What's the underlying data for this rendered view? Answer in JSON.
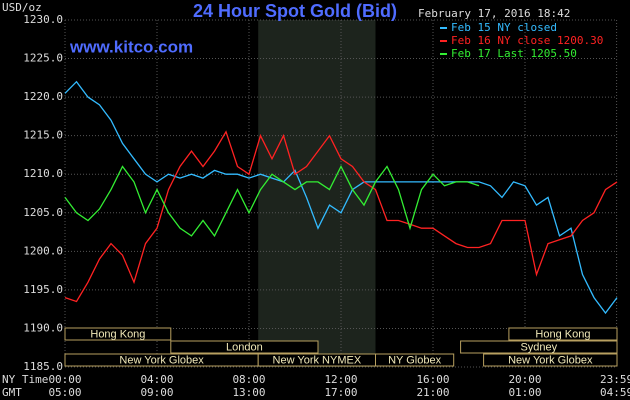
{
  "chart_data": {
    "type": "line",
    "title": "24 Hour Spot Gold (Bid)",
    "unit_label": "USD/oz",
    "timestamp": "February 17, 2016 18:42",
    "watermark": "www.kitco.com",
    "x_row_labels": [
      "NY Time",
      "GMT"
    ],
    "x": [
      0,
      0.5,
      1,
      1.5,
      2,
      2.5,
      3,
      3.5,
      4,
      4.5,
      5,
      5.5,
      6,
      6.5,
      7,
      7.5,
      8,
      8.5,
      9,
      9.5,
      10,
      10.5,
      11,
      11.5,
      12,
      12.5,
      13,
      13.5,
      14,
      14.5,
      15,
      15.5,
      16,
      16.5,
      17,
      17.5,
      18,
      18.5,
      19,
      19.5,
      20,
      20.5,
      21,
      21.5,
      22,
      22.5,
      23,
      23.5,
      24
    ],
    "xlim": [
      0,
      24
    ],
    "xticks": [
      {
        "value": 0,
        "label": "00:00"
      },
      {
        "value": 4,
        "label": "04:00"
      },
      {
        "value": 8,
        "label": "08:00"
      },
      {
        "value": 12,
        "label": "12:00"
      },
      {
        "value": 16,
        "label": "16:00"
      },
      {
        "value": 20,
        "label": "20:00"
      },
      {
        "value": 23.983,
        "label": "23:59"
      }
    ],
    "xticks_gmt": [
      "05:00",
      "09:00",
      "13:00",
      "17:00",
      "21:00",
      "01:00",
      "04:59"
    ],
    "ylim": [
      1185,
      1230
    ],
    "yticks": [
      {
        "value": 1185,
        "label": "1185.0"
      },
      {
        "value": 1190,
        "label": "1190.0"
      },
      {
        "value": 1195,
        "label": "1195.0"
      },
      {
        "value": 1200,
        "label": "1200.0"
      },
      {
        "value": 1205,
        "label": "1205.0"
      },
      {
        "value": 1210,
        "label": "1210.0"
      },
      {
        "value": 1215,
        "label": "1215.0"
      },
      {
        "value": 1220,
        "label": "1220.0"
      },
      {
        "value": 1225,
        "label": "1225.0"
      },
      {
        "value": 1230,
        "label": "1230.0"
      }
    ],
    "grid": true,
    "series": [
      {
        "name": "Feb 15 NY closed",
        "color": "#33bbff",
        "values": [
          1220.5,
          1222,
          1220,
          1219,
          1217,
          1214,
          1212,
          1210,
          1209,
          1210,
          1209.5,
          1210,
          1209.5,
          1210.5,
          1210,
          1210,
          1209.5,
          1210,
          1209.5,
          1209,
          1210.5,
          1207,
          1203,
          1206,
          1205,
          1208,
          1209,
          1209,
          1209,
          1209,
          1209,
          1209,
          1209,
          1209,
          1209,
          1209,
          1209,
          1208.5,
          1207,
          1209,
          1208.5,
          1206,
          1207,
          1202,
          1203,
          1197,
          1194,
          1192,
          1194
        ]
      },
      {
        "name": "Feb 16 NY close 1200.30",
        "color": "#ff2222",
        "values": [
          1194,
          1193.5,
          1196,
          1199,
          1201,
          1199.5,
          1196,
          1201,
          1203,
          1208,
          1211,
          1213,
          1211,
          1213,
          1215.5,
          1211,
          1210,
          1215,
          1212,
          1215,
          1210,
          1211,
          1213,
          1215,
          1212,
          1211,
          1209,
          1208,
          1204,
          1204,
          1203.5,
          1203,
          1203,
          1202,
          1201,
          1200.5,
          1200.5,
          1201,
          1204,
          1204,
          1204,
          1197,
          1201,
          1201.5,
          1202,
          1204,
          1205,
          1208,
          1209
        ]
      },
      {
        "name": "Feb 17 Last 1205.50",
        "color": "#33ee33",
        "values": [
          1207,
          1205,
          1204,
          1205.5,
          1208,
          1211,
          1209,
          1205,
          1208,
          1205,
          1203,
          1202,
          1204,
          1202,
          1205,
          1208,
          1205,
          1208,
          1210,
          1209,
          1208,
          1209,
          1209,
          1208,
          1211,
          1208,
          1206,
          1209,
          1211,
          1208,
          1203,
          1208,
          1210,
          1208.5,
          1209,
          1209,
          1208.5,
          null,
          null,
          null,
          null,
          null,
          null,
          null,
          null,
          null,
          null,
          null,
          null
        ]
      }
    ],
    "sessions": [
      [
        {
          "label": "Hong Kong",
          "start": 0,
          "end": 4.6
        },
        {
          "label": "Hong Kong",
          "start": 19.3,
          "end": 24
        }
      ],
      [
        {
          "label": "London",
          "start": 4.6,
          "end": 11
        },
        {
          "label": "Sydney",
          "start": 17.2,
          "end": 24
        }
      ],
      [
        {
          "label": "New York Globex",
          "start": 0,
          "end": 8.4
        },
        {
          "label": "New York NYMEX",
          "start": 8.4,
          "end": 13.5
        },
        {
          "label": "NY Globex",
          "start": 13.5,
          "end": 16.9
        },
        {
          "label": "New York Globex",
          "start": 18.2,
          "end": 24
        }
      ]
    ]
  }
}
